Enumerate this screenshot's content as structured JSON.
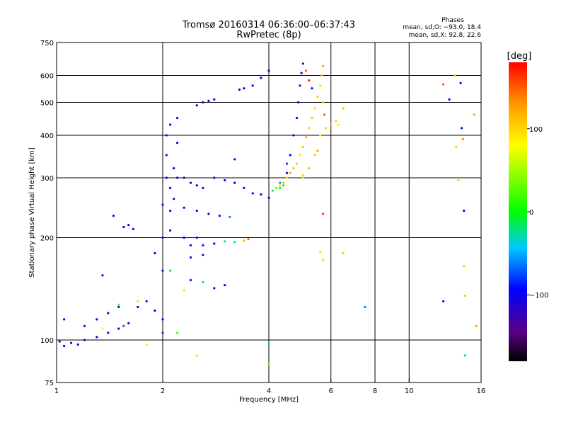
{
  "chart_data": {
    "type": "scatter",
    "title": "Tromsø 20160314 06:36:00–06:37:43",
    "subtitle": "RwPretec (8p)",
    "stats": {
      "heading": "Phases",
      "line_o": "mean, sd,O: −93.0, 18.4",
      "line_x": "mean, sd,X:  92.8, 22.6"
    },
    "xlabel": "Frequency [MHz]",
    "ylabel": "Stationary phase Virtual Height [km]",
    "x_scale": "log",
    "y_scale": "log",
    "xlim": [
      1,
      16
    ],
    "ylim": [
      75,
      750
    ],
    "x_ticks": [
      1,
      2,
      4,
      6,
      8,
      10,
      16
    ],
    "x_tick_labels": [
      "1",
      "2",
      "4",
      "6",
      "8",
      "10",
      "16"
    ],
    "y_ticks": [
      75,
      100,
      200,
      300,
      400,
      500,
      600,
      750
    ],
    "y_tick_labels": [
      "75",
      "100",
      "200",
      "300",
      "400",
      "500",
      "600",
      "750"
    ],
    "x_gridlines": [
      2,
      4,
      6,
      8,
      10
    ],
    "y_gridlines": [
      100,
      200,
      300,
      400,
      500,
      600
    ],
    "colorbar": {
      "label": "[deg]",
      "range": [
        -180,
        180
      ],
      "tick_values": [
        100,
        0,
        -100
      ],
      "tick_labels": [
        "100",
        "0",
        "−100"
      ]
    },
    "series": [
      {
        "points": [
          [
            1.02,
            99,
            -110
          ],
          [
            1.05,
            96,
            -105
          ],
          [
            1.1,
            98,
            -100
          ],
          [
            1.15,
            97,
            -108
          ],
          [
            1.2,
            100,
            -95
          ],
          [
            1.3,
            102,
            -100
          ],
          [
            1.4,
            105,
            -90
          ],
          [
            1.5,
            108,
            -105
          ],
          [
            1.55,
            110,
            -70
          ],
          [
            1.6,
            112,
            -100
          ],
          [
            1.2,
            110,
            -100
          ],
          [
            1.3,
            115,
            -95
          ],
          [
            1.4,
            120,
            -100
          ],
          [
            1.5,
            125,
            -110
          ],
          [
            1.7,
            125,
            -100
          ],
          [
            1.8,
            130,
            -105
          ],
          [
            1.9,
            122,
            -95
          ],
          [
            2.0,
            115,
            -100
          ],
          [
            2.0,
            105,
            -80
          ],
          [
            1.05,
            115,
            -100
          ],
          [
            1.35,
            155,
            -105
          ],
          [
            1.45,
            232,
            -100
          ],
          [
            1.55,
            215,
            -95
          ],
          [
            1.6,
            218,
            -110
          ],
          [
            1.65,
            212,
            -100
          ],
          [
            1.9,
            180,
            -100
          ],
          [
            2.0,
            160,
            -105
          ],
          [
            2.0,
            200,
            -100
          ],
          [
            2.0,
            250,
            -95
          ],
          [
            2.05,
            300,
            -100
          ],
          [
            2.05,
            350,
            -110
          ],
          [
            2.05,
            400,
            -100
          ],
          [
            2.1,
            430,
            -105
          ],
          [
            2.1,
            280,
            -95
          ],
          [
            2.1,
            240,
            -100
          ],
          [
            2.1,
            210,
            -90
          ],
          [
            2.15,
            260,
            -100
          ],
          [
            2.15,
            320,
            -105
          ],
          [
            2.2,
            450,
            -100
          ],
          [
            2.2,
            300,
            -95
          ],
          [
            2.2,
            380,
            -100
          ],
          [
            2.3,
            300,
            -100
          ],
          [
            2.4,
            290,
            -95
          ],
          [
            2.5,
            285,
            -100
          ],
          [
            2.6,
            280,
            -105
          ],
          [
            2.8,
            300,
            -100
          ],
          [
            3.0,
            295,
            -95
          ],
          [
            3.2,
            290,
            -100
          ],
          [
            3.4,
            280,
            -105
          ],
          [
            2.5,
            490,
            -100
          ],
          [
            2.6,
            500,
            -95
          ],
          [
            2.7,
            505,
            -100
          ],
          [
            2.8,
            510,
            -100
          ],
          [
            2.3,
            245,
            -100
          ],
          [
            2.5,
            240,
            -95
          ],
          [
            2.7,
            235,
            -100
          ],
          [
            2.9,
            232,
            -100
          ],
          [
            3.1,
            230,
            -60
          ],
          [
            2.4,
            190,
            -100
          ],
          [
            2.6,
            190,
            -90
          ],
          [
            2.8,
            192,
            -100
          ],
          [
            3.0,
            195,
            -30
          ],
          [
            3.2,
            194,
            -20
          ],
          [
            3.4,
            196,
            120
          ],
          [
            3.5,
            198,
            140
          ],
          [
            2.3,
            200,
            -100
          ],
          [
            2.5,
            200,
            -95
          ],
          [
            2.4,
            150,
            -100
          ],
          [
            2.6,
            148,
            -40
          ],
          [
            2.8,
            142,
            -100
          ],
          [
            3.0,
            145,
            -90
          ],
          [
            2.3,
            140,
            60
          ],
          [
            2.4,
            175,
            -100
          ],
          [
            2.6,
            178,
            -100
          ],
          [
            3.2,
            340,
            -100
          ],
          [
            3.3,
            545,
            -100
          ],
          [
            3.4,
            550,
            -95
          ],
          [
            3.6,
            560,
            -100
          ],
          [
            3.8,
            590,
            -100
          ],
          [
            4.0,
            620,
            -100
          ],
          [
            3.6,
            270,
            -100
          ],
          [
            3.8,
            268,
            -95
          ],
          [
            4.0,
            262,
            -100
          ],
          [
            4.1,
            275,
            -20
          ],
          [
            4.2,
            280,
            30
          ],
          [
            4.3,
            285,
            90
          ],
          [
            4.4,
            290,
            110
          ],
          [
            4.5,
            300,
            100
          ],
          [
            4.6,
            310,
            120
          ],
          [
            4.7,
            320,
            110
          ],
          [
            4.8,
            330,
            100
          ],
          [
            4.9,
            350,
            90
          ],
          [
            5.0,
            370,
            110
          ],
          [
            5.1,
            395,
            120
          ],
          [
            5.2,
            420,
            100
          ],
          [
            5.3,
            450,
            110
          ],
          [
            5.4,
            480,
            100
          ],
          [
            5.5,
            520,
            110
          ],
          [
            5.6,
            560,
            100
          ],
          [
            5.65,
            600,
            110
          ],
          [
            5.7,
            640,
            120
          ],
          [
            4.3,
            280,
            0
          ],
          [
            4.4,
            285,
            -10
          ],
          [
            4.5,
            310,
            -100
          ],
          [
            4.6,
            350,
            -105
          ],
          [
            4.7,
            400,
            -100
          ],
          [
            4.8,
            450,
            -95
          ],
          [
            4.85,
            500,
            -100
          ],
          [
            4.9,
            560,
            -110
          ],
          [
            4.95,
            610,
            -100
          ],
          [
            5.0,
            650,
            -105
          ],
          [
            5.1,
            620,
            150
          ],
          [
            5.2,
            580,
            170
          ],
          [
            5.3,
            550,
            -100
          ],
          [
            4.3,
            290,
            -60
          ],
          [
            4.5,
            330,
            -80
          ],
          [
            5.0,
            300,
            100
          ],
          [
            5.2,
            320,
            110
          ],
          [
            5.4,
            350,
            100
          ],
          [
            5.6,
            400,
            90
          ],
          [
            5.8,
            420,
            100
          ],
          [
            6.0,
            430,
            110
          ],
          [
            6.2,
            440,
            100
          ],
          [
            6.3,
            430,
            90
          ],
          [
            6.5,
            480,
            110
          ],
          [
            5.0,
            305,
            100
          ],
          [
            5.5,
            360,
            120
          ],
          [
            5.7,
            500,
            110
          ],
          [
            5.75,
            460,
            150
          ],
          [
            5.7,
            235,
            160
          ],
          [
            5.6,
            182,
            100
          ],
          [
            5.7,
            172,
            50
          ],
          [
            6.5,
            180,
            110
          ],
          [
            7.5,
            125,
            -60
          ],
          [
            4.0,
            98,
            -10
          ],
          [
            4.0,
            85,
            30
          ],
          [
            2.1,
            160,
            -10
          ],
          [
            2.2,
            105,
            20
          ],
          [
            2.5,
            90,
            100
          ],
          [
            1.8,
            97,
            90
          ],
          [
            1.35,
            108,
            80
          ],
          [
            1.5,
            127,
            20
          ],
          [
            1.7,
            130,
            100
          ],
          [
            12.5,
            565,
            150
          ],
          [
            13.0,
            510,
            -100
          ],
          [
            14.0,
            570,
            -100
          ],
          [
            14.1,
            420,
            -100
          ],
          [
            14.2,
            390,
            140
          ],
          [
            14.3,
            240,
            -100
          ],
          [
            14.3,
            165,
            100
          ],
          [
            14.4,
            135,
            110
          ],
          [
            14.4,
            90,
            -20
          ],
          [
            13.5,
            600,
            110
          ],
          [
            12.5,
            130,
            -100
          ],
          [
            15.3,
            460,
            120
          ],
          [
            15.5,
            110,
            130
          ],
          [
            13.6,
            370,
            110
          ],
          [
            13.8,
            295,
            100
          ]
        ]
      }
    ]
  }
}
